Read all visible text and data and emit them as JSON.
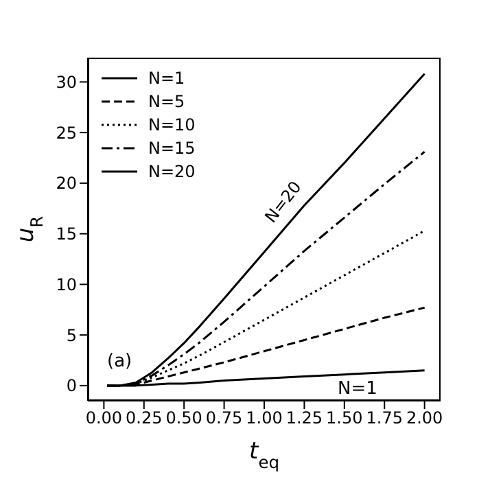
{
  "chart_data": {
    "type": "line",
    "xlabel": "t$_{eq}$",
    "ylabel": "u$_{R}$",
    "x": [
      0.02,
      0.1,
      0.2,
      0.3,
      0.4,
      0.5,
      0.6,
      0.75,
      1.0,
      1.25,
      1.5,
      1.75,
      2.0
    ],
    "series": [
      {
        "name": "N=1",
        "color": "#000000",
        "line_style": "solid",
        "values": [
          0,
          0,
          0,
          0.1,
          0.2,
          0.2,
          0.3,
          0.5,
          0.7,
          0.9,
          1.1,
          1.3,
          1.5
        ]
      },
      {
        "name": "N=5",
        "color": "#000000",
        "line_style": "dashed",
        "values": [
          0,
          0,
          0.1,
          0.5,
          0.9,
          1.3,
          1.7,
          2.3,
          3.4,
          4.5,
          5.6,
          6.7,
          7.7
        ]
      },
      {
        "name": "N=10",
        "color": "#000000",
        "line_style": "dotted",
        "values": [
          0,
          0,
          0.2,
          0.8,
          1.5,
          2.2,
          3.0,
          4.3,
          6.5,
          8.7,
          10.9,
          13.1,
          15.3
        ]
      },
      {
        "name": "N=15",
        "color": "#000000",
        "line_style": "dashdot",
        "values": [
          0,
          0,
          0.2,
          1.0,
          2.0,
          3.1,
          4.3,
          6.3,
          9.8,
          13.3,
          16.6,
          19.9,
          23.1
        ]
      },
      {
        "name": "N=20",
        "color": "#000000",
        "line_style": "solid",
        "values": [
          0,
          0,
          0.3,
          1.3,
          2.7,
          4.2,
          5.9,
          8.6,
          13.2,
          17.8,
          22.0,
          26.4,
          30.8
        ]
      }
    ],
    "xlim": [
      -0.1,
      2.1
    ],
    "ylim": [
      -1.5,
      32.4
    ],
    "xticks": [
      {
        "value": 0,
        "label": "0.00"
      },
      {
        "value": 0.25,
        "label": "0.25"
      },
      {
        "value": 0.5,
        "label": "0.50"
      },
      {
        "value": 0.75,
        "label": "0.75"
      },
      {
        "value": 1,
        "label": "1.00"
      },
      {
        "value": 1.25,
        "label": "1.25"
      },
      {
        "value": 1.5,
        "label": "1.50"
      },
      {
        "value": 1.75,
        "label": "1.75"
      },
      {
        "value": 2,
        "label": "2.00"
      }
    ],
    "yticks": [
      0,
      5,
      10,
      15,
      20,
      25,
      30
    ],
    "annotations": [
      "(a)",
      {
        "text": "N=20",
        "x": 1.2,
        "y": 17
      },
      "N=1"
    ],
    "legend": "top left",
    "grid": false,
    "marker": "none"
  }
}
